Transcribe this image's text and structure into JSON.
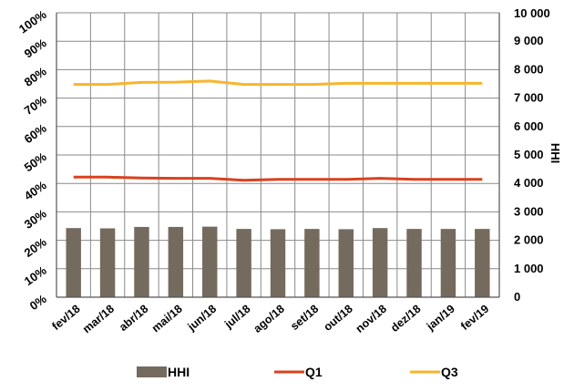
{
  "chart_data": {
    "type": "bar",
    "title": "",
    "categories": [
      "fev/18",
      "mar/18",
      "abr/18",
      "mai/18",
      "jun/18",
      "jul/18",
      "ago/18",
      "set/18",
      "out/18",
      "nov/18",
      "dez/18",
      "jan/19",
      "fev/19"
    ],
    "y_left": {
      "ylim": [
        0,
        100
      ],
      "ticks": [
        "0%",
        "10%",
        "20%",
        "30%",
        "40%",
        "50%",
        "60%",
        "70%",
        "80%",
        "90%",
        "100%"
      ]
    },
    "y_right": {
      "label": "HHI",
      "ylim": [
        0,
        10000
      ],
      "ticks": [
        "0",
        "1 000",
        "2 000",
        "3 000",
        "4 000",
        "5 000",
        "6 000",
        "7 000",
        "8 000",
        "9 000",
        "10 000"
      ]
    },
    "series": [
      {
        "name": "HHI",
        "type": "bar",
        "axis": "right",
        "color": "#756a5e",
        "values": [
          2430,
          2420,
          2470,
          2470,
          2480,
          2400,
          2390,
          2400,
          2390,
          2430,
          2400,
          2400,
          2400
        ]
      },
      {
        "name": "Q1",
        "type": "line",
        "axis": "left",
        "color": "#d9411e",
        "values": [
          42.2,
          42.2,
          41.9,
          41.8,
          41.8,
          41.1,
          41.4,
          41.4,
          41.4,
          41.8,
          41.4,
          41.4,
          41.4
        ]
      },
      {
        "name": "Q3",
        "type": "line",
        "axis": "left",
        "color": "#f7b52d",
        "values": [
          74.8,
          74.8,
          75.5,
          75.6,
          76.0,
          74.8,
          74.8,
          74.8,
          75.2,
          75.2,
          75.2,
          75.2,
          75.2
        ]
      }
    ],
    "grid": true,
    "legend_position": "bottom"
  }
}
